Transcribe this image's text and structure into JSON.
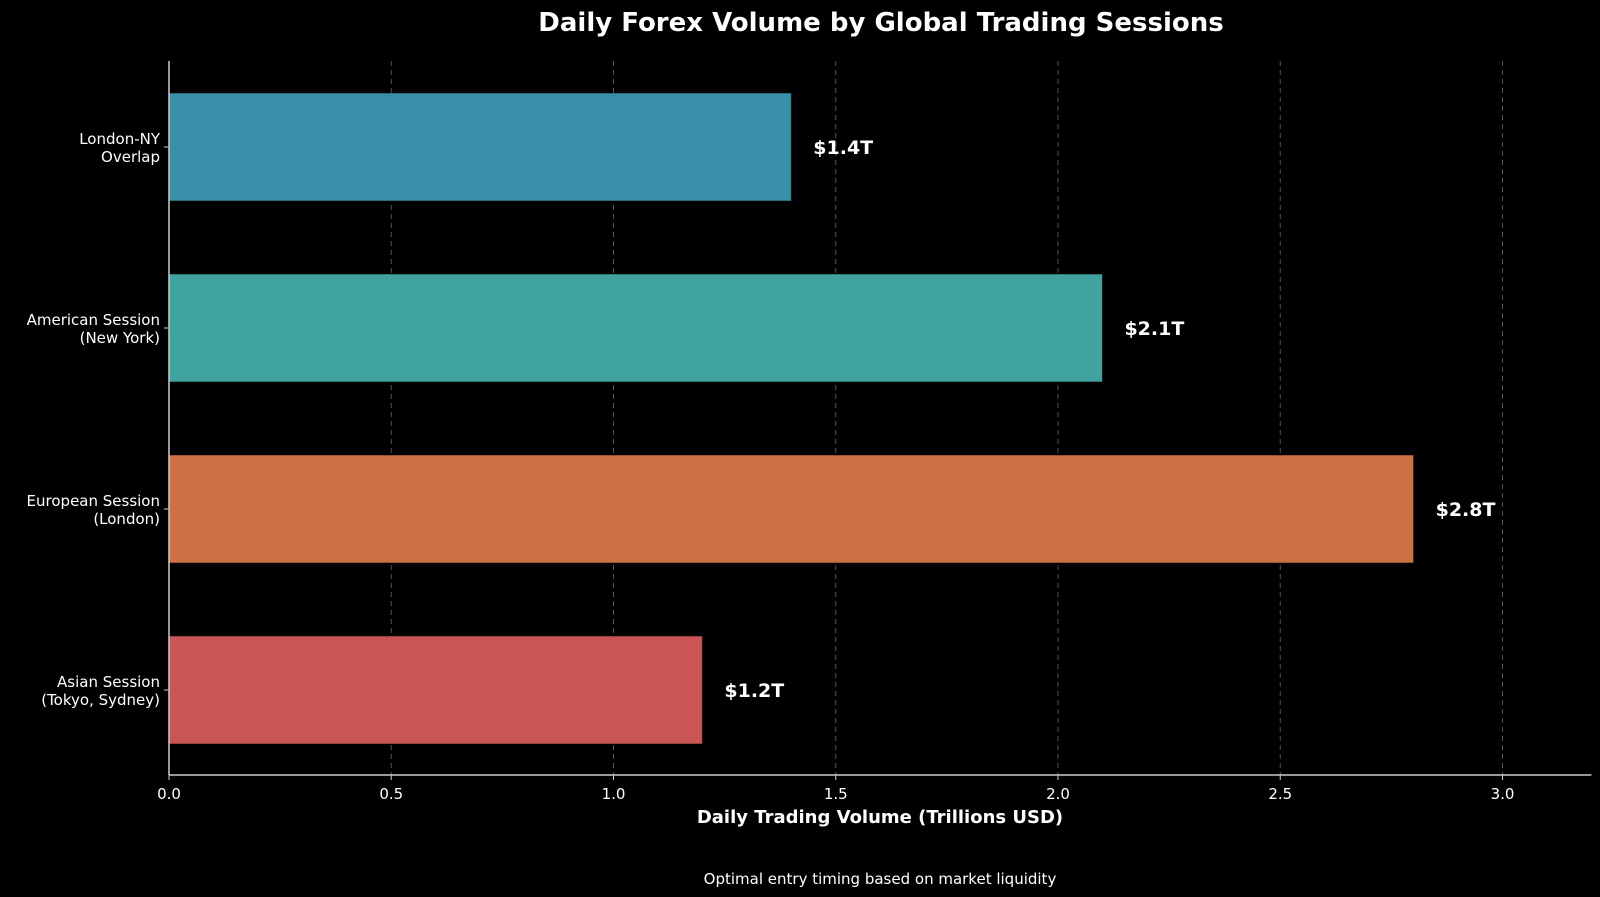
{
  "chart_data": {
    "type": "bar",
    "orientation": "horizontal",
    "title": "Daily Forex Volume by Global Trading Sessions",
    "xlabel": "Daily Trading Volume (Trillions USD)",
    "ylabel": "",
    "footnote": "Optimal entry timing based on market liquidity",
    "categories": [
      [
        "Asian Session",
        "(Tokyo, Sydney)"
      ],
      [
        "European Session",
        "(London)"
      ],
      [
        "American Session",
        "(New York)"
      ],
      [
        "London-NY",
        "Overlap"
      ]
    ],
    "values": [
      1.2,
      2.8,
      2.1,
      1.4
    ],
    "value_labels": [
      "$1.2T",
      "$2.8T",
      "$2.1T",
      "$1.4T"
    ],
    "colors": [
      "#C95555",
      "#CB7144",
      "#41A39D",
      "#3890A8"
    ],
    "xlim": [
      0,
      3.2
    ],
    "xticks": [
      0.0,
      0.5,
      1.0,
      1.5,
      2.0,
      2.5,
      3.0
    ],
    "xtick_labels": [
      "0.0",
      "0.5",
      "1.0",
      "1.5",
      "2.0",
      "2.5",
      "3.0"
    ],
    "grid": {
      "x": true,
      "y": false,
      "style": "dashed"
    },
    "legend": null,
    "background": "#000000"
  }
}
